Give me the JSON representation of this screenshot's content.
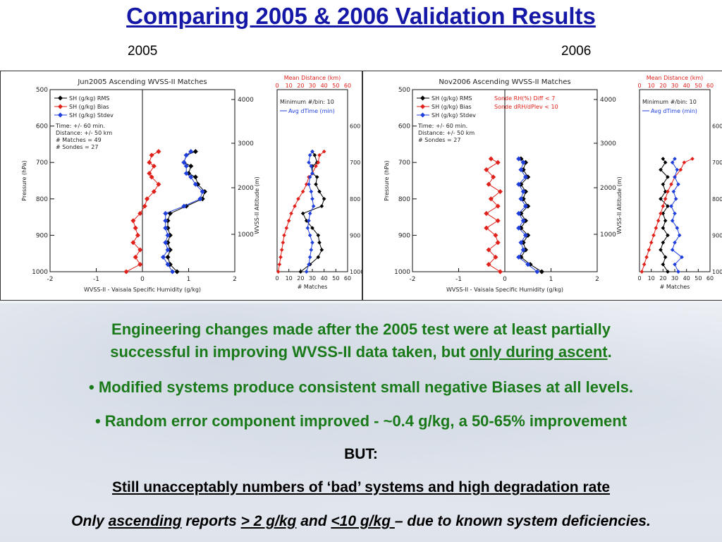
{
  "slide": {
    "title": "Comparing 2005 & 2006 Validation Results",
    "year_left": "2005",
    "year_right": "2006",
    "line1": "Engineering changes made after the 2005 test were at least partially",
    "line2a": "successful in improving WVSS-II data taken,  but ",
    "line2b": "only during ascent",
    "line2c": ".",
    "bullet1": "• Modified systems produce consistent small negative Biases at all levels.",
    "bullet2": "• Random error component improved - ~0.4 g/kg, a 50-65% improvement",
    "but": "BUT:",
    "still": "Still unacceptably numbers of ‘bad’ systems and high degradation rate",
    "only_a": "Only ",
    "only_b": "ascending",
    "only_c": " reports ",
    "only_d": "> 2 g/kg",
    "only_e": " and ",
    "only_f": "<10 g/kg ",
    "only_g": "– due to known system deficiencies."
  },
  "chart_data": [
    {
      "type": "line",
      "title": "Jun2005 Ascending WVSS-II Matches",
      "xlabel": "WVSS-II - Vaisala Specific Humidity (g/kg)",
      "ylabel": "Pressure (hPa)",
      "ylabel_right": "WVSS-II Altitude (m)",
      "xlim": [
        -2,
        2
      ],
      "ylim": [
        1000,
        500
      ],
      "xticks": [
        "-2",
        "-1",
        "0",
        "1",
        "2"
      ],
      "yticks": [
        "500",
        "600",
        "700",
        "800",
        "900",
        "1000"
      ],
      "alt_ticks": [
        "4000",
        "3000",
        "2000",
        "1000"
      ],
      "annotations": [
        "Time: +/- 60 min.",
        "Distance: +/- 50 km",
        "# Matches = 49",
        "# Sondes = 27"
      ],
      "legend": [
        "SH (g/kg) RMS",
        "SH (g/kg) Bias",
        "SH (g/kg) Stdev"
      ],
      "colors": {
        "rms": "#000000",
        "bias": "#e0201a",
        "stdev": "#1f3fdc"
      },
      "pressure": [
        670,
        680,
        700,
        710,
        730,
        740,
        760,
        780,
        800,
        820,
        840,
        860,
        880,
        900,
        920,
        940,
        960,
        980,
        1000
      ],
      "series": [
        {
          "name": "SH (g/kg) RMS",
          "values": [
            1.15,
            0.95,
            0.9,
            1.05,
            1.0,
            1.15,
            1.2,
            1.35,
            1.3,
            0.95,
            0.6,
            0.55,
            0.55,
            0.6,
            0.55,
            0.6,
            0.55,
            0.6,
            0.75
          ]
        },
        {
          "name": "SH (g/kg) Bias",
          "values": [
            0.35,
            0.2,
            0.15,
            0.25,
            0.15,
            0.2,
            0.35,
            0.25,
            0.1,
            0.05,
            -0.05,
            -0.2,
            -0.15,
            -0.1,
            -0.2,
            -0.05,
            -0.15,
            -0.05,
            -0.35
          ]
        },
        {
          "name": "SH (g/kg) Stdev",
          "values": [
            1.05,
            0.95,
            0.9,
            0.95,
            0.95,
            1.05,
            1.15,
            1.3,
            1.25,
            0.9,
            0.5,
            0.5,
            0.5,
            0.55,
            0.5,
            0.55,
            0.45,
            0.55,
            0.65
          ]
        }
      ],
      "side": {
        "title": "Mean Distance (km)",
        "xticks": [
          "0",
          "10",
          "20",
          "30",
          "40",
          "50",
          "60"
        ],
        "xlabel": "# Matches",
        "notes": [
          "Minimum #/bin: 10",
          "Avg dTime (min)"
        ],
        "right_ticks": [
          "600",
          "700",
          "800",
          "900",
          "1000"
        ],
        "matches": [
          30,
          32,
          34,
          30,
          30,
          34,
          33,
          36,
          40,
          38,
          22,
          25,
          30,
          35,
          36,
          38,
          35,
          28,
          20
        ],
        "distance": [
          40,
          36,
          35,
          33,
          30,
          27,
          25,
          22,
          18,
          15,
          12,
          10,
          8,
          6,
          5,
          4,
          3,
          2,
          1
        ],
        "dtime": [
          30,
          28,
          27,
          29,
          30,
          28,
          27,
          29,
          30,
          31,
          28,
          27,
          26,
          28,
          30,
          29,
          28,
          27,
          25
        ]
      }
    },
    {
      "type": "line",
      "title": "Nov2006 Ascending WVSS-II Matches",
      "xlabel": "WVSS-II - Vaisala Specific Humidity (g/kg)",
      "ylabel": "Pressure (hPa)",
      "ylabel_right": "WVSS-II Altitude (m)",
      "xlim": [
        -2,
        2
      ],
      "ylim": [
        1000,
        500
      ],
      "xticks": [
        "-2",
        "-1",
        "0",
        "1",
        "2"
      ],
      "yticks": [
        "500",
        "600",
        "700",
        "800",
        "900",
        "1000"
      ],
      "alt_ticks": [
        "4000",
        "3000",
        "2000",
        "1000"
      ],
      "annotations": [
        "Time: +/- 60 min.",
        "Distance: +/- 50 km",
        "# Sondes = 27"
      ],
      "filters": [
        "Sonde RH(%) Diff < 7",
        "Sonde dRH/dPlev < 10"
      ],
      "legend": [
        "SH (g/kg) RMS",
        "SH (g/kg) Bias",
        "SH (g/kg) Stdev"
      ],
      "colors": {
        "rms": "#000000",
        "bias": "#e0201a",
        "stdev": "#1f3fdc"
      },
      "pressure": [
        690,
        700,
        720,
        740,
        760,
        780,
        800,
        820,
        840,
        860,
        880,
        900,
        920,
        940,
        960,
        980,
        1000
      ],
      "series": [
        {
          "name": "SH (g/kg) RMS",
          "values": [
            0.35,
            0.45,
            0.4,
            0.5,
            0.35,
            0.45,
            0.4,
            0.5,
            0.35,
            0.45,
            0.35,
            0.5,
            0.4,
            0.45,
            0.35,
            0.55,
            0.8
          ]
        },
        {
          "name": "SH (g/kg) Bias",
          "values": [
            -0.3,
            -0.15,
            -0.4,
            -0.25,
            -0.35,
            -0.1,
            -0.3,
            -0.15,
            -0.4,
            -0.15,
            -0.4,
            -0.2,
            -0.15,
            -0.35,
            -0.2,
            -0.35,
            -0.1
          ]
        },
        {
          "name": "SH (g/kg) Stdev",
          "values": [
            0.3,
            0.4,
            0.35,
            0.45,
            0.3,
            0.4,
            0.35,
            0.45,
            0.3,
            0.4,
            0.3,
            0.45,
            0.35,
            0.4,
            0.3,
            0.5,
            0.7
          ]
        }
      ],
      "side": {
        "title": "Mean Distance (km)",
        "xticks": [
          "0",
          "10",
          "20",
          "30",
          "40",
          "50",
          "60"
        ],
        "xlabel": "# Matches",
        "notes": [
          "Minimum #/bin: 10",
          "Avg dTime (min)"
        ],
        "right_ticks": [
          "600",
          "700",
          "800",
          "900",
          "1000"
        ],
        "matches": [
          20,
          22,
          18,
          24,
          20,
          22,
          18,
          24,
          20,
          22,
          20,
          24,
          20,
          18,
          22,
          20,
          24
        ],
        "distance": [
          45,
          38,
          35,
          30,
          27,
          24,
          22,
          20,
          18,
          16,
          14,
          12,
          10,
          8,
          6,
          4,
          2
        ],
        "dtime": [
          30,
          28,
          32,
          30,
          33,
          29,
          31,
          27,
          30,
          28,
          32,
          34,
          30,
          28,
          36,
          30,
          33
        ]
      }
    }
  ]
}
